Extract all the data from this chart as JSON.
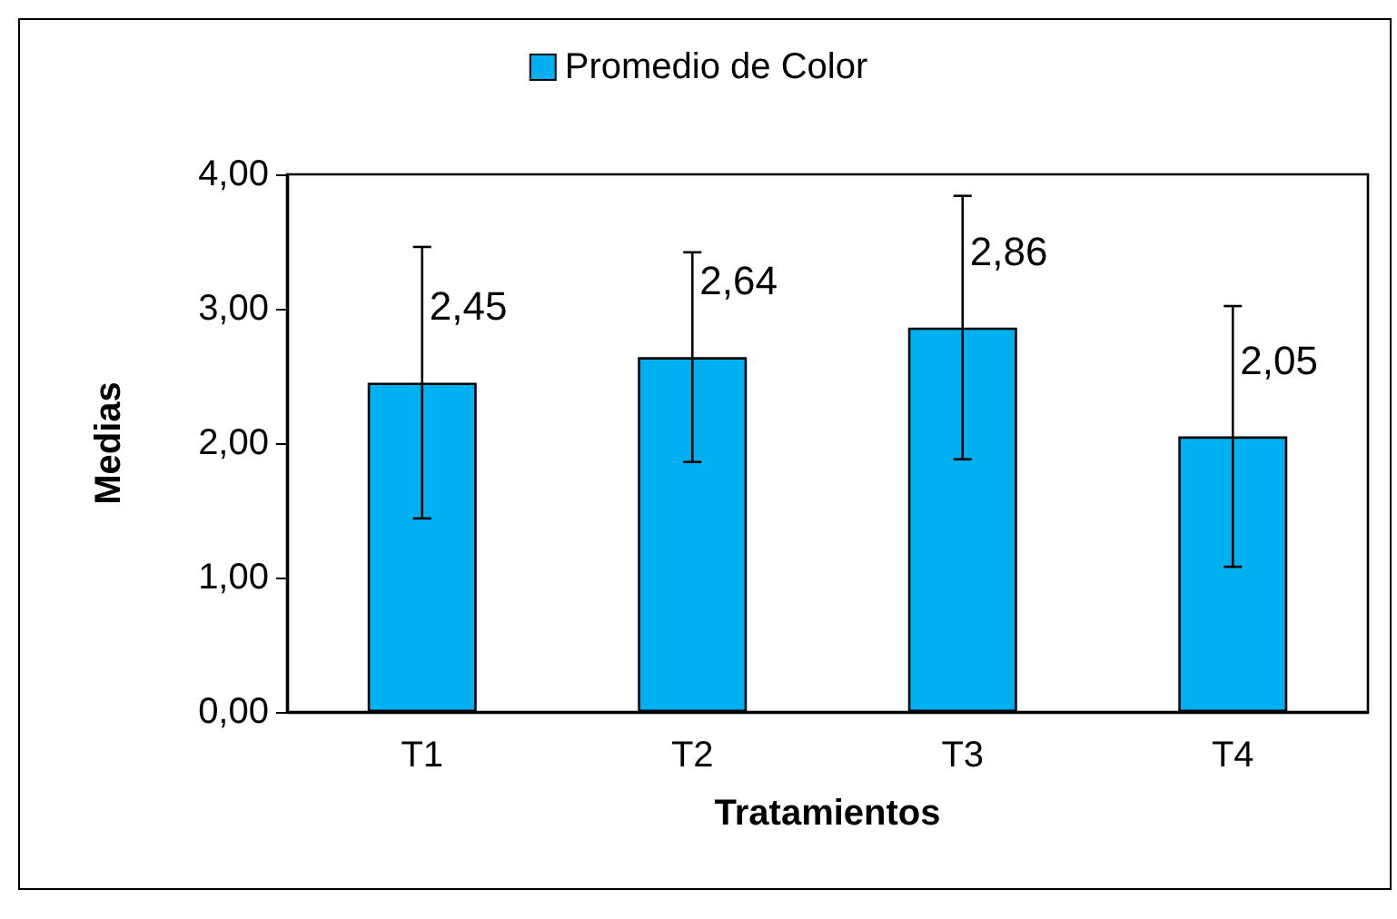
{
  "chart_data": {
    "type": "bar",
    "xlabel": "Tratamientos",
    "ylabel": "Medias",
    "categories": [
      "T1",
      "T2",
      "T3",
      "T4"
    ],
    "series": [
      {
        "name": "Promedio de Color",
        "color": "#00b0f0",
        "values": [
          2.45,
          2.64,
          2.86,
          2.05
        ],
        "errors": [
          1.01,
          0.78,
          0.98,
          0.97
        ],
        "value_labels": [
          "2,45",
          "2,64",
          "2,86",
          "2,05"
        ]
      }
    ],
    "ylim": [
      0,
      4
    ],
    "yticks": [
      {
        "value": 0,
        "label": "0,00"
      },
      {
        "value": 1,
        "label": "1,00"
      },
      {
        "value": 2,
        "label": "2,00"
      },
      {
        "value": 3,
        "label": "3,00"
      },
      {
        "value": 4,
        "label": "4,00"
      }
    ],
    "grid": false,
    "legend": "top"
  }
}
